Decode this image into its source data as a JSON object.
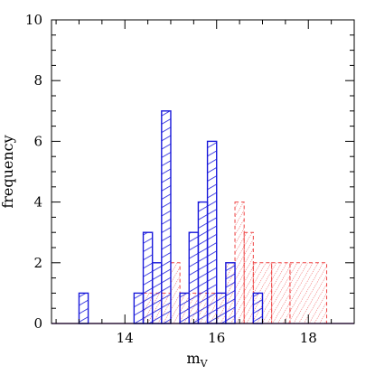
{
  "chart_data": {
    "type": "bar",
    "title": "",
    "xlabel": "m",
    "xlabel_subscript": "V",
    "ylabel": "frequency",
    "xlim": [
      12.4,
      19.0
    ],
    "ylim": [
      0,
      10
    ],
    "bin_width": 0.2,
    "x_ticks": [
      14,
      16,
      18
    ],
    "y_ticks": [
      0,
      2,
      4,
      6,
      8,
      10
    ],
    "grid": false,
    "legend": "none",
    "series": [
      {
        "style": "solid",
        "color": "#1a1adb",
        "hatch": "diagonal-shallow",
        "bins": [
          {
            "x0": 13.0,
            "x1": 13.2,
            "count": 1
          },
          {
            "x0": 14.2,
            "x1": 14.4,
            "count": 1
          },
          {
            "x0": 14.4,
            "x1": 14.6,
            "count": 3
          },
          {
            "x0": 14.6,
            "x1": 14.8,
            "count": 2
          },
          {
            "x0": 14.8,
            "x1": 15.0,
            "count": 7
          },
          {
            "x0": 15.2,
            "x1": 15.4,
            "count": 1
          },
          {
            "x0": 15.4,
            "x1": 15.6,
            "count": 3
          },
          {
            "x0": 15.6,
            "x1": 15.8,
            "count": 4
          },
          {
            "x0": 15.8,
            "x1": 16.0,
            "count": 6
          },
          {
            "x0": 16.0,
            "x1": 16.2,
            "count": 1
          },
          {
            "x0": 16.2,
            "x1": 16.4,
            "count": 2
          },
          {
            "x0": 16.8,
            "x1": 17.0,
            "count": 1
          }
        ]
      },
      {
        "style": "dashed",
        "color": "#ee4444",
        "hatch": "diagonal-steep",
        "bins": [
          {
            "x0": 14.4,
            "x1": 15.0,
            "count": 1
          },
          {
            "x0": 15.0,
            "x1": 15.2,
            "count": 2
          },
          {
            "x0": 15.2,
            "x1": 16.2,
            "count": 1
          },
          {
            "x0": 16.2,
            "x1": 16.4,
            "count": 2
          },
          {
            "x0": 16.4,
            "x1": 16.6,
            "count": 4
          },
          {
            "x0": 16.6,
            "x1": 16.8,
            "count": 3
          },
          {
            "x0": 16.8,
            "x1": 17.2,
            "count": 2
          },
          {
            "x0": 17.2,
            "x1": 17.6,
            "count": 2
          },
          {
            "x0": 17.6,
            "x1": 18.4,
            "count": 2
          }
        ]
      }
    ]
  }
}
